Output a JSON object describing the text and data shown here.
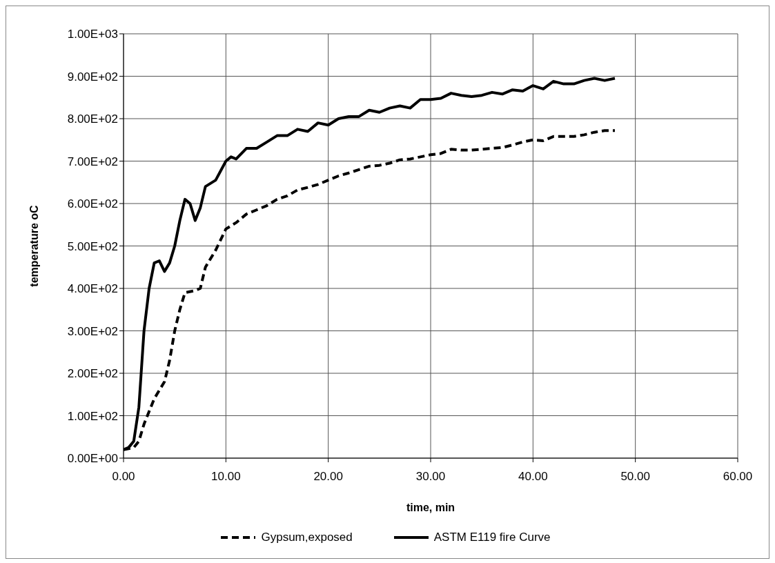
{
  "chart_data": {
    "type": "line",
    "xlabel": "time, min",
    "ylabel": "temperature oC",
    "xlim": [
      0,
      60
    ],
    "xticks": [
      {
        "value": 0,
        "label": "0.00"
      },
      {
        "value": 10,
        "label": "10.00"
      },
      {
        "value": 20,
        "label": "20.00"
      },
      {
        "value": 30,
        "label": "30.00"
      },
      {
        "value": 40,
        "label": "40.00"
      },
      {
        "value": 50,
        "label": "50.00"
      },
      {
        "value": 60,
        "label": "60.00"
      }
    ],
    "ylim": [
      0,
      1000
    ],
    "yticks": [
      {
        "value": 0,
        "label": "0.00E+00"
      },
      {
        "value": 100,
        "label": "1.00E+02"
      },
      {
        "value": 200,
        "label": "2.00E+02"
      },
      {
        "value": 300,
        "label": "3.00E+02"
      },
      {
        "value": 400,
        "label": "4.00E+02"
      },
      {
        "value": 500,
        "label": "5.00E+02"
      },
      {
        "value": 600,
        "label": "6.00E+02"
      },
      {
        "value": 700,
        "label": "7.00E+02"
      },
      {
        "value": 800,
        "label": "8.00E+02"
      },
      {
        "value": 900,
        "label": "9.00E+02"
      },
      {
        "value": 1000,
        "label": "1.00E+03"
      }
    ],
    "grid": true,
    "legend": "bottom",
    "marker": "none",
    "series": [
      {
        "name": "Gypsum,exposed",
        "color": "#000000",
        "line_style": "dashed",
        "x": [
          0,
          1,
          1.5,
          2,
          3,
          4,
          4.5,
          5,
          5.5,
          6,
          7,
          7.5,
          8,
          9,
          10,
          11,
          12,
          13,
          14,
          15,
          16,
          17,
          18,
          19,
          20,
          21,
          22,
          23,
          24,
          25,
          26,
          27,
          28,
          29,
          30,
          31,
          32,
          33,
          34,
          35,
          36,
          37,
          38,
          39,
          40,
          41,
          42,
          43,
          44,
          45,
          46,
          47,
          48
        ],
        "values": [
          20,
          25,
          40,
          80,
          140,
          180,
          230,
          300,
          350,
          390,
          395,
          400,
          450,
          490,
          540,
          555,
          575,
          585,
          595,
          610,
          618,
          632,
          638,
          645,
          655,
          665,
          672,
          680,
          688,
          690,
          695,
          703,
          705,
          710,
          715,
          718,
          728,
          726,
          726,
          728,
          730,
          732,
          738,
          745,
          750,
          748,
          758,
          758,
          758,
          762,
          768,
          772,
          772
        ]
      },
      {
        "name": "ASTM E119 fire Curve",
        "color": "#000000",
        "line_style": "solid",
        "x": [
          0,
          0.5,
          1,
          1.5,
          2,
          2.5,
          3,
          3.5,
          4,
          4.5,
          5,
          5.5,
          6,
          6.5,
          7,
          7.5,
          8,
          9,
          10,
          10.5,
          11,
          12,
          13,
          14,
          15,
          16,
          17,
          18,
          19,
          20,
          21,
          22,
          23,
          24,
          25,
          26,
          27,
          28,
          29,
          30,
          31,
          32,
          33,
          34,
          35,
          36,
          37,
          38,
          39,
          40,
          41,
          42,
          43,
          44,
          45,
          46,
          47,
          48
        ],
        "values": [
          20,
          25,
          40,
          120,
          300,
          400,
          460,
          465,
          440,
          460,
          500,
          560,
          610,
          600,
          560,
          590,
          640,
          655,
          700,
          710,
          705,
          730,
          730,
          745,
          760,
          760,
          775,
          770,
          790,
          785,
          800,
          805,
          805,
          820,
          815,
          825,
          830,
          825,
          845,
          845,
          848,
          860,
          855,
          852,
          855,
          862,
          858,
          868,
          865,
          878,
          870,
          888,
          882,
          882,
          890,
          895,
          890,
          895
        ]
      }
    ]
  }
}
